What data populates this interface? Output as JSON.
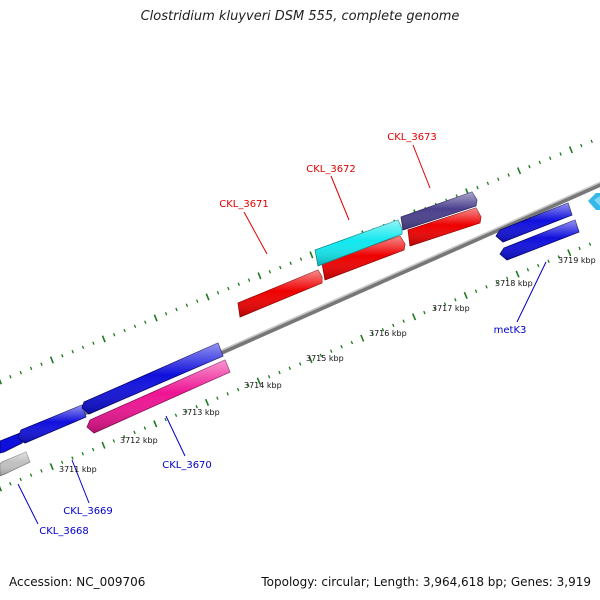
{
  "title": "Clostridium kluyveri DSM 555, complete genome",
  "accession_text": "Accession: NC_009706",
  "summary_text": "Topology: circular; Length: 3,964,618 bp; Genes: 3,919",
  "colors": {
    "backbone": "#8c8c8c",
    "tick": "#1f7a1f",
    "forward_label": "#e00000",
    "reverse_label": "#0000cc",
    "gene_red": "#ee0000",
    "gene_cyan": "#11e8ee",
    "gene_purple": "#4a3f8c",
    "gene_blue": "#1010dd",
    "gene_magenta": "#ee1493",
    "gene_grey": "#c0c0c0",
    "gene_lightblue": "#33b8e8"
  },
  "kbp_labels": [
    "3711 kbp",
    "3712 kbp",
    "3713 kbp",
    "3714 kbp",
    "3715 kbp",
    "3716 kbp",
    "3717 kbp",
    "3718 kbp",
    "3719 kbp"
  ],
  "genes": [
    {
      "id": "CKL_3668",
      "strand": "reverse",
      "color": "gene_grey",
      "labeled": true
    },
    {
      "id": "CKL_3669",
      "strand": "reverse",
      "color": "gene_blue",
      "labeled": true
    },
    {
      "id": "CKL_3670",
      "strand": "reverse",
      "color": "gene_magenta",
      "labeled": true
    },
    {
      "id": "CKL_3671",
      "strand": "forward",
      "color": "gene_red",
      "labeled": true
    },
    {
      "id": "CKL_3672",
      "strand": "forward",
      "color": "gene_cyan",
      "labeled": true
    },
    {
      "id": "CKL_3673",
      "strand": "forward",
      "color": "gene_purple",
      "labeled": true
    },
    {
      "id": "metK3",
      "strand": "reverse",
      "color": "gene_blue",
      "labeled": true
    }
  ]
}
